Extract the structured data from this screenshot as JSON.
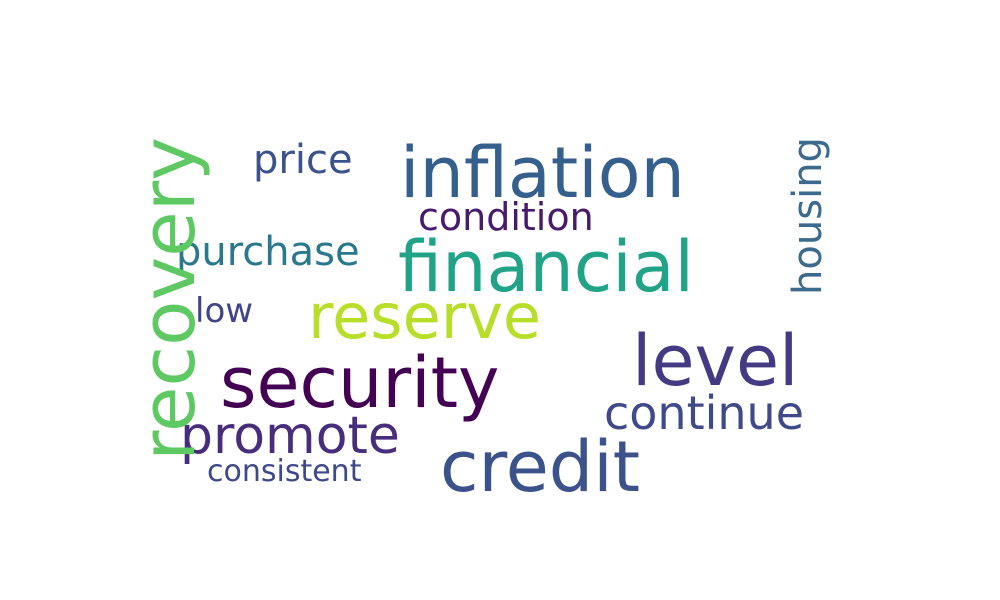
{
  "words": [
    {
      "key": "inflation",
      "text": "inflation",
      "color": "#355f8d"
    },
    {
      "key": "price",
      "text": "price",
      "color": "#3b528b"
    },
    {
      "key": "condition",
      "text": "condition",
      "color": "#481a6c"
    },
    {
      "key": "financial",
      "text": "financial",
      "color": "#20a386"
    },
    {
      "key": "purchase",
      "text": "purchase",
      "color": "#2a788e"
    },
    {
      "key": "reserve",
      "text": "reserve",
      "color": "#b8de29"
    },
    {
      "key": "low",
      "text": "low",
      "color": "#414487"
    },
    {
      "key": "level",
      "text": "level",
      "color": "#443983"
    },
    {
      "key": "security",
      "text": "security",
      "color": "#440154"
    },
    {
      "key": "continue",
      "text": "continue",
      "color": "#3e4a89"
    },
    {
      "key": "promote",
      "text": "promote",
      "color": "#472d7b"
    },
    {
      "key": "credit",
      "text": "credit",
      "color": "#3b528b"
    },
    {
      "key": "consistent",
      "text": "consistent",
      "color": "#3e4989"
    },
    {
      "key": "recovery",
      "text": "recovery",
      "color": "#5ec962"
    },
    {
      "key": "housing",
      "text": "housing",
      "color": "#3b6a8e"
    }
  ]
}
